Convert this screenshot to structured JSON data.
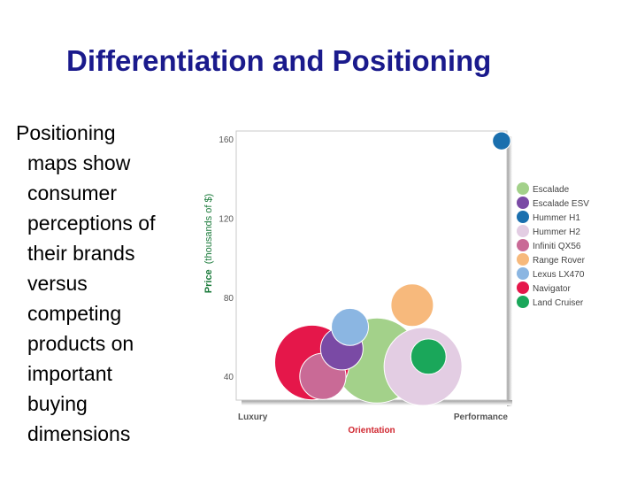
{
  "slide": {
    "title": "Differentiation and Positioning",
    "bullet_first": "Positioning",
    "bullet_rest": "maps show\nconsumer\nperceptions of\ntheir brands\nversus\ncompeting\nproducts on\nimportant\nbuying\ndimensions"
  },
  "chart_data": {
    "type": "scatter",
    "subtype": "bubble",
    "title": "",
    "xlabel": "Orientation",
    "ylabel_bold": "Price",
    "ylabel_rest": "(thousands of $)",
    "x_tick_labels": [
      "Luxury",
      "Performance"
    ],
    "xlim": [
      0,
      10
    ],
    "ylim": [
      28,
      164
    ],
    "yticks": [
      40,
      80,
      120,
      160
    ],
    "grid": false,
    "legend_position": "right",
    "series": [
      {
        "name": "Escalade",
        "color": "#a3d18a",
        "x": 5.2,
        "y": 48,
        "size": 2.2
      },
      {
        "name": "Escalade ESV",
        "color": "#7a4aa5",
        "x": 3.9,
        "y": 54,
        "size": 0.55
      },
      {
        "name": "Hummer H1",
        "color": "#1a6fae",
        "x": 9.8,
        "y": 159,
        "size": 0.1
      },
      {
        "name": "Hummer H2",
        "color": "#e3cde3",
        "x": 6.9,
        "y": 45,
        "size": 1.85
      },
      {
        "name": "Infiniti QX56",
        "color": "#c96a96",
        "x": 3.2,
        "y": 40,
        "size": 0.65
      },
      {
        "name": "Range Rover",
        "color": "#f7b97c",
        "x": 6.5,
        "y": 76,
        "size": 0.55
      },
      {
        "name": "Lexus LX470",
        "color": "#8bb6e2",
        "x": 4.2,
        "y": 65,
        "size": 0.42
      },
      {
        "name": "Navigator",
        "color": "#e5174a",
        "x": 2.8,
        "y": 47,
        "size": 1.7
      },
      {
        "name": "Land Cruiser",
        "color": "#1aa75a",
        "x": 7.1,
        "y": 50,
        "size": 0.38
      }
    ]
  }
}
